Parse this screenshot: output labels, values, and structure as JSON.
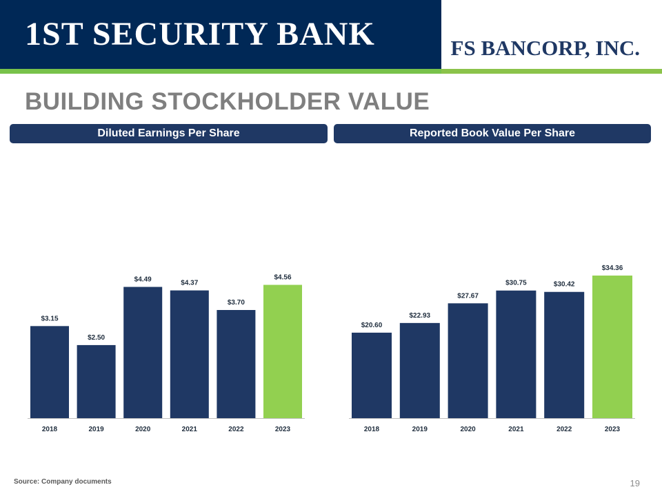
{
  "header": {
    "left_brand": "1ST SECURITY BANK",
    "right_brand": "FS BANCORP, INC."
  },
  "title": "BUILDING STOCKHOLDER VALUE",
  "colors": {
    "navy": "#1f3864",
    "green": "#92d050",
    "header": "#002856"
  },
  "chart_data": [
    {
      "type": "bar",
      "title": "Diluted Earnings Per Share",
      "categories": [
        "2018",
        "2019",
        "2020",
        "2021",
        "2022",
        "2023"
      ],
      "values": [
        3.15,
        2.5,
        4.49,
        4.37,
        3.7,
        4.56
      ],
      "value_labels": [
        "$3.15",
        "$2.50",
        "$4.49",
        "$4.37",
        "$3.70",
        "$4.56"
      ],
      "highlight_index": 5,
      "ylim": [
        0,
        5.5
      ],
      "xlabel": "",
      "ylabel": ""
    },
    {
      "type": "bar",
      "title": "Reported Book Value Per Share",
      "categories": [
        "2018",
        "2019",
        "2020",
        "2021",
        "2022",
        "2023"
      ],
      "values": [
        20.6,
        22.93,
        27.67,
        30.75,
        30.42,
        34.36
      ],
      "value_labels": [
        "$20.60",
        "$22.93",
        "$27.67",
        "$30.75",
        "$30.42",
        "$34.36"
      ],
      "highlight_index": 5,
      "ylim": [
        0,
        56
      ],
      "xlabel": "",
      "ylabel": ""
    }
  ],
  "footer": {
    "source": "Source: Company documents",
    "page_number": "19"
  }
}
